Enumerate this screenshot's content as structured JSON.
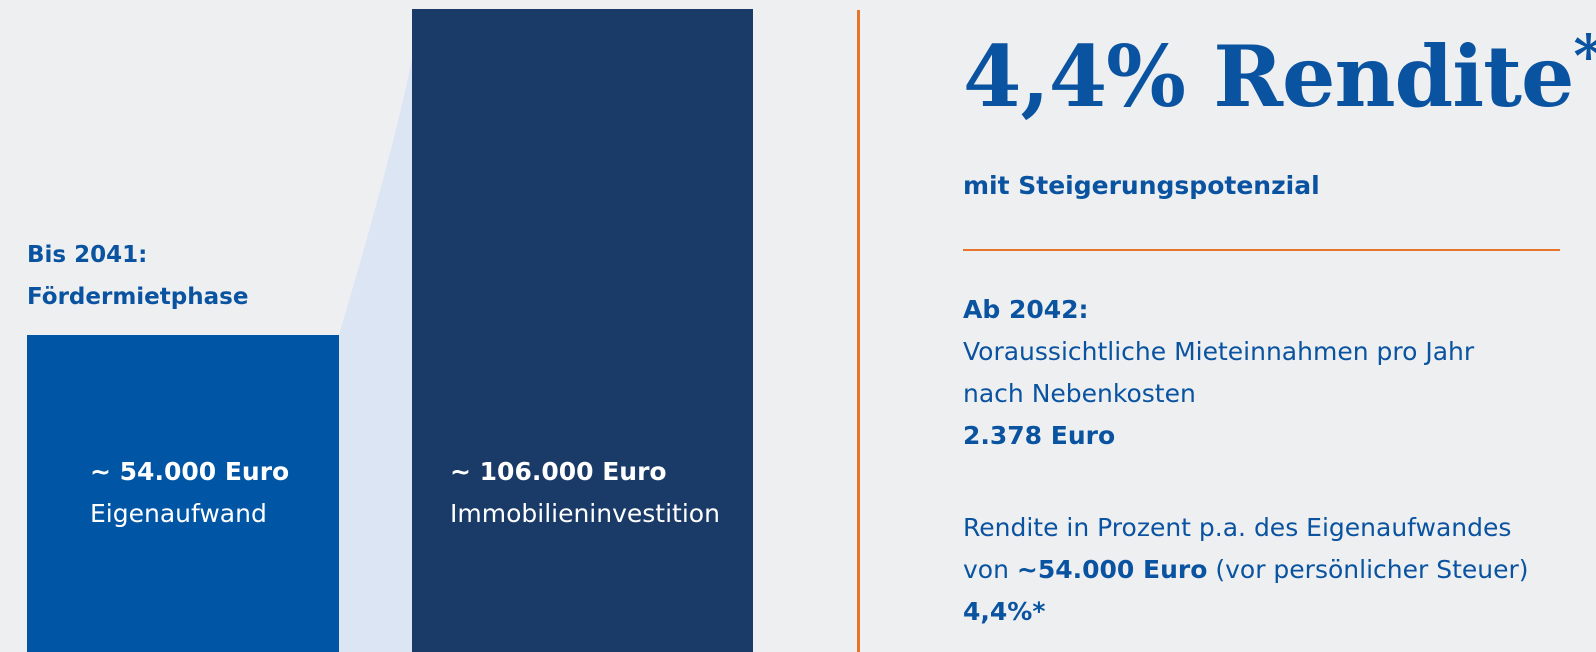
{
  "left": {
    "phase_line1": "Bis 2041:",
    "phase_line2": "Fördermietphase",
    "bars": [
      {
        "amount": "~ 54.000 Euro",
        "label": "Eigenaufwand"
      },
      {
        "amount": "~ 106.000 Euro",
        "label": "Immobilieninvestition"
      }
    ]
  },
  "right": {
    "headline": "4,4% Rendite",
    "headline_mark": "*",
    "subtitle": "mit Steigerungspotenzial",
    "section1": {
      "heading": "Ab 2042:",
      "line1": "Voraussichtliche Mieteinnahmen pro Jahr",
      "line2": "nach Nebenkosten",
      "value": "2.378 Euro"
    },
    "section2": {
      "line1": "Rendite in Prozent p.a. des Eigenaufwandes",
      "prefix": "von",
      "bold": "~54.000 Euro",
      "suffix": "(vor persönlicher Steuer)",
      "value": "4,4%*"
    }
  }
}
